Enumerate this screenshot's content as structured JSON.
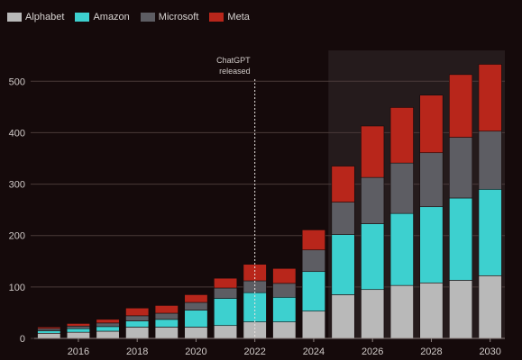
{
  "chart_data": {
    "type": "bar",
    "stacked": true,
    "x": [
      2015,
      2016,
      2017,
      2018,
      2019,
      2020,
      2021,
      2022,
      2023,
      2024,
      2025,
      2026,
      2027,
      2028,
      2029,
      2030
    ],
    "x_tick_labels": [
      "2016",
      "2018",
      "2020",
      "2022",
      "2024",
      "2026",
      "2028",
      "2030"
    ],
    "y_tick_labels": [
      "0",
      "100",
      "200",
      "300",
      "400",
      "500"
    ],
    "ylim": [
      0,
      560
    ],
    "grid": "horizontal",
    "legend": "top-left",
    "title": "",
    "xlabel": "",
    "ylabel": "",
    "series": [
      {
        "name": "Alphabet",
        "color": "#b9b9b9",
        "values": [
          10,
          12,
          14,
          22,
          22,
          22,
          25,
          32,
          32,
          53,
          85,
          95,
          103,
          108,
          113,
          122
        ]
      },
      {
        "name": "Amazon",
        "color": "#3dd0cf",
        "values": [
          5,
          7,
          9,
          12,
          15,
          33,
          53,
          57,
          48,
          77,
          117,
          128,
          140,
          148,
          160,
          168
        ]
      },
      {
        "name": "Microsoft",
        "color": "#5d5d63",
        "values": [
          4,
          5,
          7,
          10,
          12,
          15,
          20,
          23,
          27,
          42,
          63,
          90,
          98,
          105,
          118,
          113
        ]
      },
      {
        "name": "Meta",
        "color": "#b8261b",
        "values": [
          3,
          5,
          7,
          15,
          15,
          15,
          19,
          32,
          29,
          39,
          70,
          100,
          108,
          112,
          122,
          130
        ]
      }
    ],
    "annotations": [
      {
        "x": 2022,
        "lines": [
          "ChatGPT",
          "released"
        ]
      }
    ],
    "shaded_region": {
      "from": 2025,
      "to": 2030
    }
  }
}
